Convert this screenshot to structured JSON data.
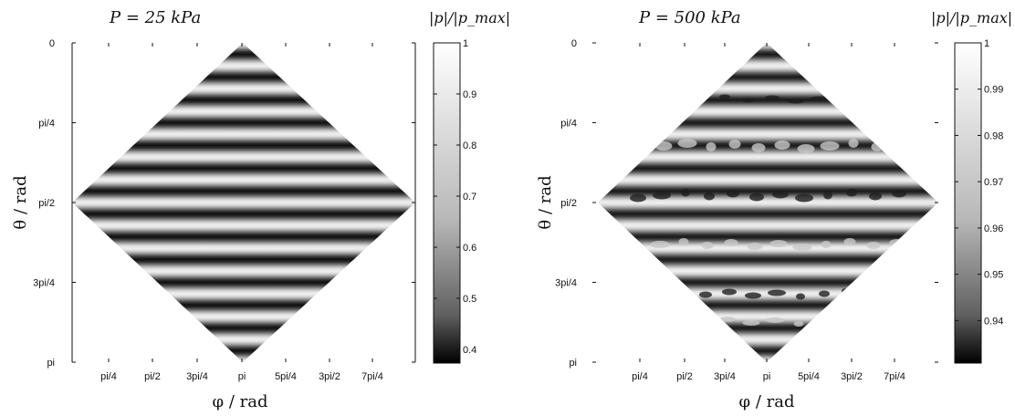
{
  "chart_data": [
    {
      "type": "heatmap",
      "title": "P = 25 kPa",
      "xlabel": "φ / rad",
      "ylabel": "θ / rad",
      "x_ticks": [
        "pi/4",
        "pi/2",
        "3pi/4",
        "pi",
        "5pi/4",
        "3pi/2",
        "7pi/4"
      ],
      "y_ticks": [
        "0",
        "pi/4",
        "pi/2",
        "3pi/4",
        "pi"
      ],
      "x_range": [
        0,
        6.2832
      ],
      "y_range": [
        0,
        3.1416
      ],
      "colorbar": {
        "title": "|p|/|p_max|",
        "ticks": [
          "1",
          "0.9",
          "0.8",
          "0.7",
          "0.6",
          "0.5",
          "0.4"
        ],
        "tick_values": [
          1.0,
          0.9,
          0.8,
          0.7,
          0.6,
          0.5,
          0.4
        ],
        "range": [
          0.375,
          1.0
        ]
      },
      "colormap": "gray",
      "band_count": 14,
      "pattern": "horizontal bands"
    },
    {
      "type": "heatmap",
      "title": "P = 500 kPa",
      "xlabel": "φ / rad",
      "ylabel": "θ / rad",
      "x_ticks": [
        "pi/4",
        "pi/2",
        "3pi/4",
        "pi",
        "5pi/4",
        "3pi/2",
        "7pi/4"
      ],
      "y_ticks": [
        "0",
        "pi/4",
        "pi/2",
        "3pi/4",
        "pi"
      ],
      "x_range": [
        0,
        6.2832
      ],
      "y_range": [
        0,
        3.1416
      ],
      "colorbar": {
        "title": "|p|/|p_max|",
        "ticks": [
          "1",
          "0.99",
          "0.98",
          "0.97",
          "0.96",
          "0.95",
          "0.94"
        ],
        "tick_values": [
          1.0,
          0.99,
          0.98,
          0.97,
          0.96,
          0.95,
          0.94
        ],
        "range": [
          0.931,
          1.0
        ]
      },
      "colormap": "gray",
      "band_count": 14,
      "pattern": "horizontal bands with irregular dark blobs"
    }
  ]
}
